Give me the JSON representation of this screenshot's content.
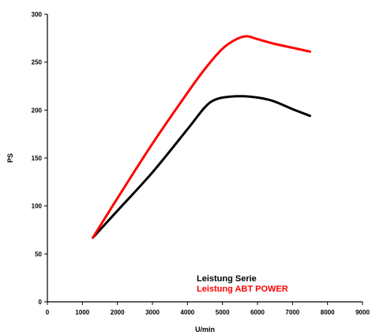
{
  "chart_data": {
    "type": "line",
    "title": "",
    "xlabel": "U/min",
    "ylabel": "PS",
    "xlim": [
      0,
      9000
    ],
    "ylim": [
      0,
      300
    ],
    "xticks": [
      0,
      1000,
      2000,
      3000,
      4000,
      5000,
      6000,
      7000,
      8000,
      9000
    ],
    "yticks": [
      0,
      50,
      100,
      150,
      200,
      250,
      300
    ],
    "grid": false,
    "legend_position": "bottom-right",
    "series": [
      {
        "name": "Leistung Serie",
        "color": "#000000",
        "x": [
          1300,
          2000,
          3000,
          4000,
          4500,
          4800,
          5200,
          5800,
          6400,
          7000,
          7500
        ],
        "y": [
          67,
          95,
          135,
          180,
          203,
          211,
          214,
          214,
          210,
          201,
          194
        ]
      },
      {
        "name": "Leistung ABT POWER",
        "color": "#ff0000",
        "x": [
          1300,
          2000,
          3000,
          4000,
          4500,
          5000,
          5400,
          5700,
          6000,
          6500,
          7000,
          7500
        ],
        "y": [
          67,
          108,
          165,
          218,
          243,
          264,
          274,
          277,
          274,
          269,
          265,
          261
        ]
      }
    ]
  }
}
